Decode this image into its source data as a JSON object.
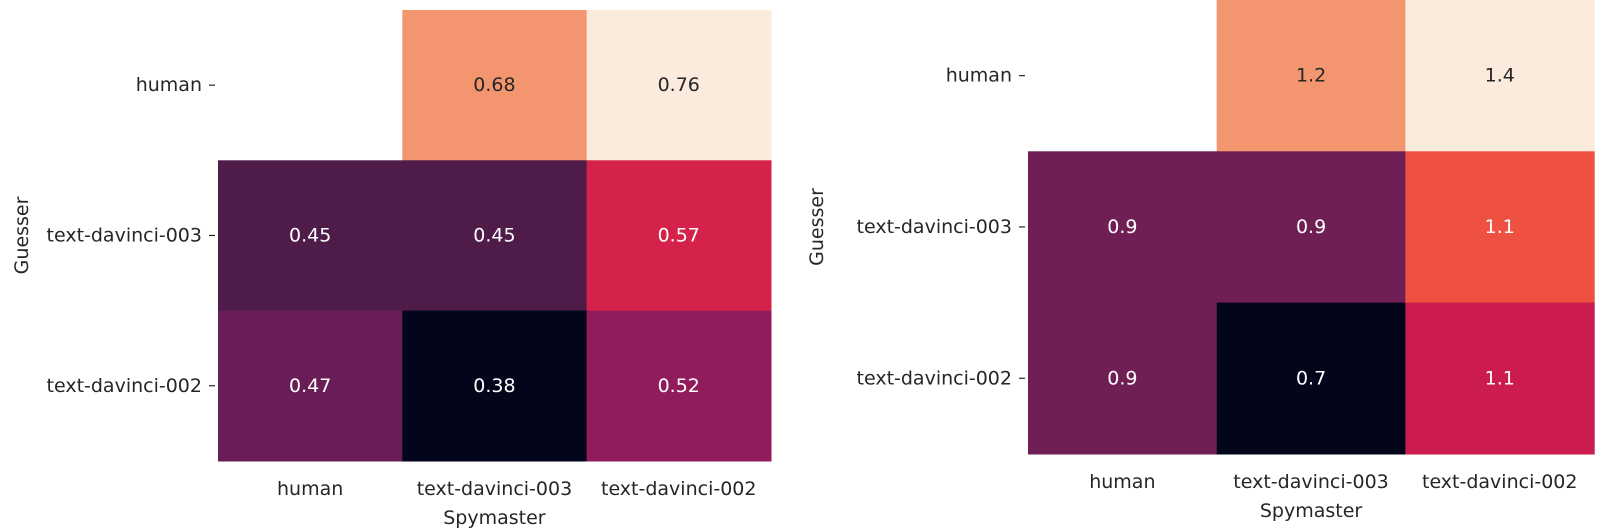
{
  "chart_data": [
    {
      "type": "heatmap",
      "title": "",
      "xlabel": "Spymaster",
      "ylabel": "Guesser",
      "x_categories": [
        "human",
        "text-davinci-003",
        "text-davinci-002"
      ],
      "y_categories": [
        "human",
        "text-davinci-003",
        "text-davinci-002"
      ],
      "values": [
        [
          null,
          0.68,
          0.76
        ],
        [
          0.45,
          0.45,
          0.57
        ],
        [
          0.47,
          0.38,
          0.52
        ]
      ],
      "value_labels": [
        [
          null,
          "0.68",
          "0.76"
        ],
        [
          "0.45",
          "0.45",
          "0.57"
        ],
        [
          "0.47",
          "0.38",
          "0.52"
        ]
      ],
      "colors": [
        [
          null,
          "#f3966f",
          "#faebdd"
        ],
        [
          "#4f1c4a",
          "#4f1c4a",
          "#d5224b"
        ],
        [
          "#6a1c57",
          "#03051a",
          "#921c5b"
        ]
      ],
      "colorbar": false
    },
    {
      "type": "heatmap",
      "title": "",
      "xlabel": "Spymaster",
      "ylabel": "Guesser",
      "x_categories": [
        "human",
        "text-davinci-003",
        "text-davinci-002"
      ],
      "y_categories": [
        "human",
        "text-davinci-003",
        "text-davinci-002"
      ],
      "values": [
        [
          null,
          1.2,
          1.4
        ],
        [
          0.9,
          0.9,
          1.1
        ],
        [
          0.9,
          0.7,
          1.1
        ]
      ],
      "value_labels": [
        [
          null,
          "1.2",
          "1.4"
        ],
        [
          "0.9",
          "0.9",
          "1.1"
        ],
        [
          "0.9",
          "0.7",
          "1.1"
        ]
      ],
      "colors": [
        [
          null,
          "#f3966f",
          "#faebdd"
        ],
        [
          "#701f55",
          "#701f55",
          "#ee5141"
        ],
        [
          "#701f55",
          "#03051a",
          "#cb1b4f"
        ]
      ],
      "colorbar": false
    }
  ]
}
